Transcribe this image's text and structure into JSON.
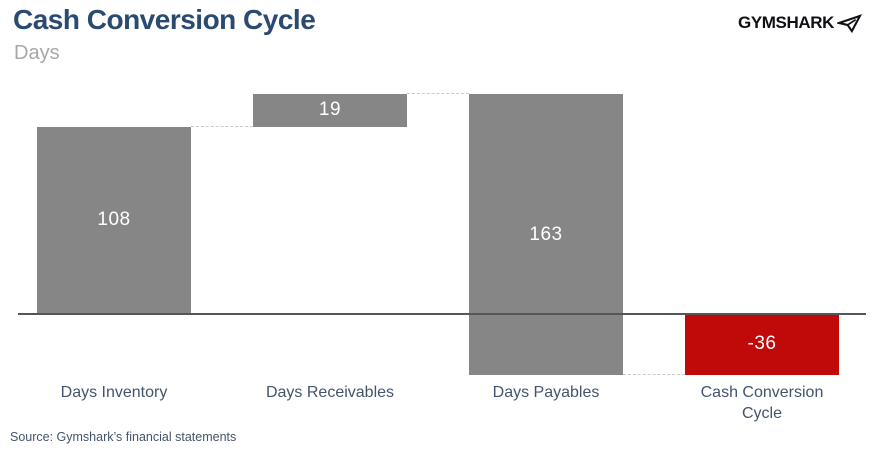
{
  "header": {
    "title": "Cash Conversion Cycle",
    "subtitle": "Days",
    "logo_text": "GYMSHARK",
    "logo_icon": "shark-icon"
  },
  "footer": {
    "source": "Source: Gymshark’s financial statements"
  },
  "colors": {
    "bar_gray": "#868686",
    "bar_red": "#c00a0a",
    "title_navy": "#2a4a70",
    "label_steel": "#44546a",
    "subtitle_gray": "#a8a8a8",
    "axis_line": "#565656",
    "connector_dash": "#c9c9c9"
  },
  "chart_data": {
    "type": "bar",
    "subtype": "waterfall",
    "title": "Cash Conversion Cycle",
    "ylabel": "Days",
    "xlabel": "",
    "legend": false,
    "gridlines": false,
    "zero_line": true,
    "categories": [
      "Days Inventory",
      "Days Receivables",
      "Days Payables",
      "Cash Conversion Cycle"
    ],
    "values": [
      108,
      19,
      -163,
      -36
    ],
    "bars": [
      {
        "category": "Days Inventory",
        "display_value": "108",
        "start": 0,
        "end": 108,
        "color": "#868686",
        "role": "increase"
      },
      {
        "category": "Days Receivables",
        "display_value": "19",
        "start": 108,
        "end": 127,
        "color": "#868686",
        "role": "increase"
      },
      {
        "category": "Days Payables",
        "display_value": "163",
        "start": 127,
        "end": -36,
        "color": "#868686",
        "role": "decrease"
      },
      {
        "category": "Cash Conversion Cycle",
        "display_value": "-36",
        "start": 0,
        "end": -36,
        "color": "#c00a0a",
        "role": "total"
      }
    ]
  }
}
